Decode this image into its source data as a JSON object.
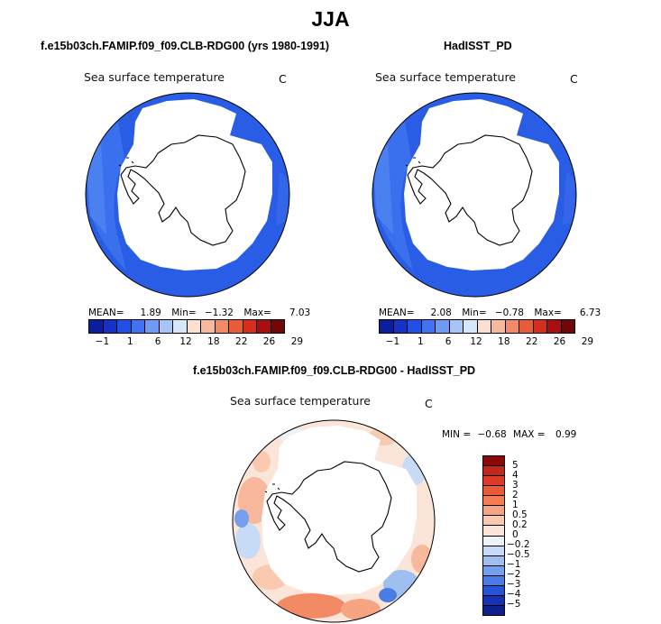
{
  "figure": {
    "title": "JJA"
  },
  "panels": [
    {
      "title": "f.e15b03ch.FAMIP.f09_f09.CLB-RDG00 (yrs 1980-1991)",
      "label": "Sea surface temperature",
      "units": "C",
      "stats": {
        "mean_label": "MEAN=",
        "mean": "1.89",
        "min_label": "Min=",
        "min": "−1.32",
        "max_label": "Max=",
        "max": "7.03"
      }
    },
    {
      "title": "HadISST_PD",
      "label": "Sea surface temperature",
      "units": "C",
      "stats": {
        "mean_label": "MEAN=",
        "mean": "2.08",
        "min_label": "Min=",
        "min": "−0.78",
        "max_label": "Max=",
        "max": "6.73"
      }
    },
    {
      "title": "f.e15b03ch.FAMIP.f09_f09.CLB-RDG00 - HadISST_PD",
      "label": "Sea surface temperature",
      "units": "C",
      "stats": {
        "min_label": "MIN =",
        "min": "−0.68",
        "max_label": "MAX =",
        "max": "0.99"
      }
    }
  ],
  "colorbar_abs": {
    "ticks": [
      "−1",
      "1",
      "6",
      "12",
      "18",
      "22",
      "26",
      "29"
    ],
    "colors": [
      "#0a1f9e",
      "#1431c8",
      "#2050e6",
      "#3f73f2",
      "#6e9bf5",
      "#a7c4f7",
      "#d8e6fa",
      "#fbe0d2",
      "#f7b89c",
      "#f28a66",
      "#e95c39",
      "#d42f1c",
      "#a80f10",
      "#730606"
    ]
  },
  "colorbar_diff": {
    "labels": [
      "5",
      "4",
      "3",
      "2",
      "1",
      "0.5",
      "0.2",
      "0",
      "−0.2",
      "−0.5",
      "−1",
      "−2",
      "−3",
      "−4",
      "−5"
    ],
    "colors": [
      "#8a0a0a",
      "#c1271c",
      "#dc3a24",
      "#ee5a34",
      "#f57d52",
      "#f7a483",
      "#f9c9b0",
      "#fbe5d8",
      "#eef3fb",
      "#c8dbf6",
      "#9fbff1",
      "#739fec",
      "#4a7ce6",
      "#2555d6",
      "#1332b4",
      "#0c1f8c"
    ]
  }
}
